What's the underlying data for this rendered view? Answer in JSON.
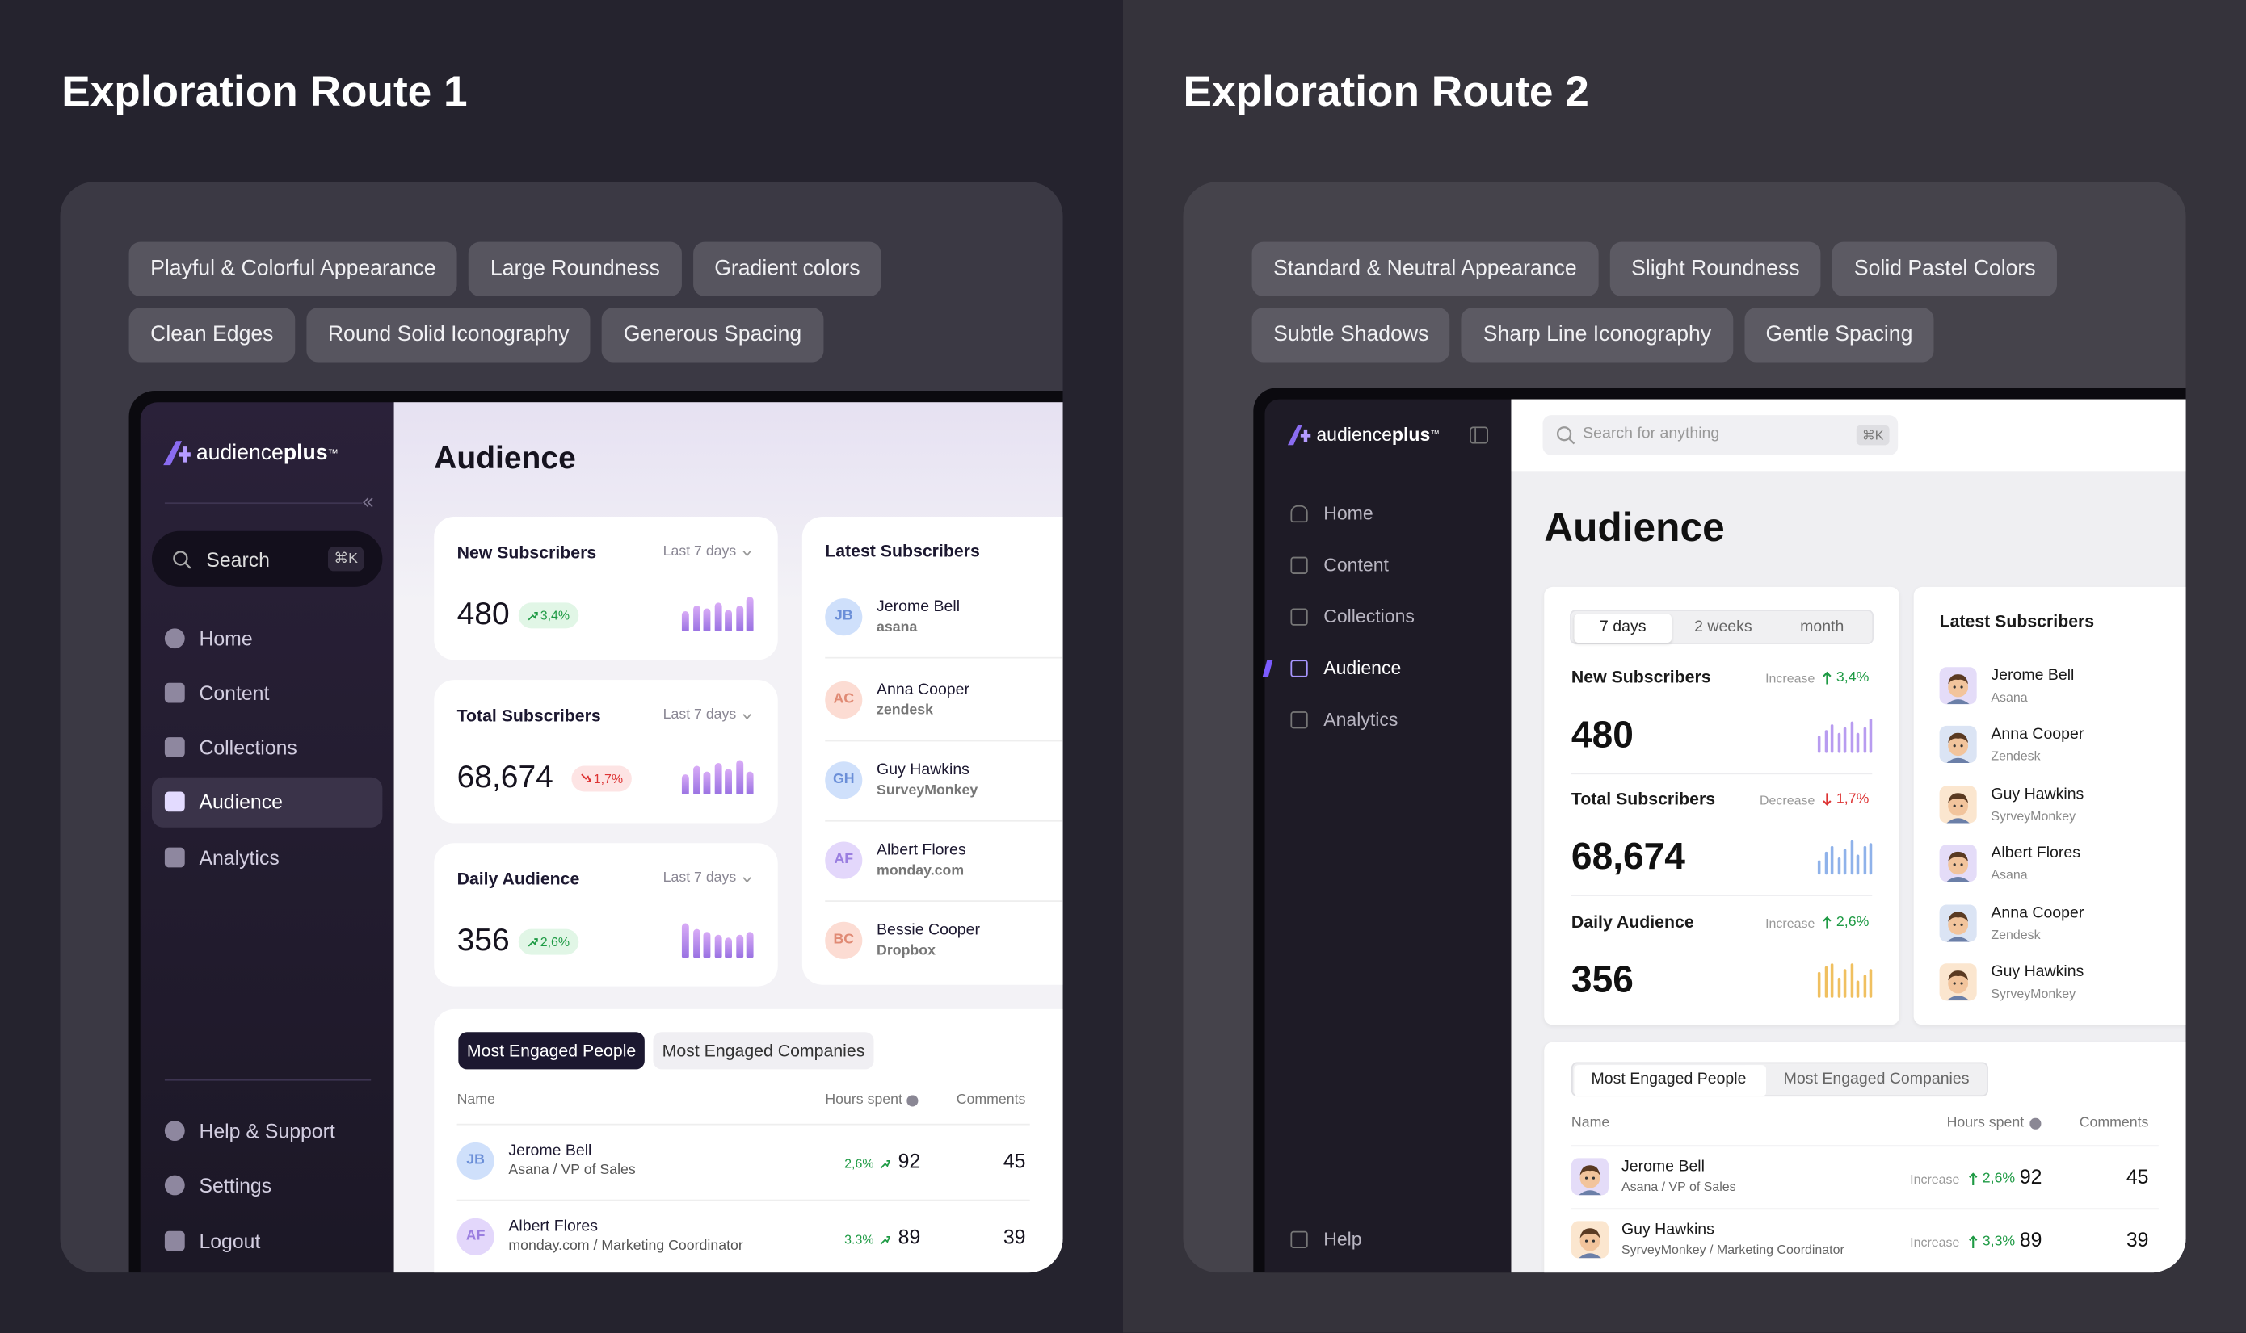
{
  "route1": {
    "title": "Exploration Route 1",
    "tags": [
      [
        "Playful & Colorful Appearance",
        "Large Roundness",
        "Gradient colors"
      ],
      [
        "Clean Edges",
        "Round Solid Iconography",
        "Generous Spacing"
      ]
    ],
    "app": {
      "brand": {
        "name": "audience",
        "accent": "plus",
        "mark": "™"
      },
      "search": "Search",
      "shortcut": "⌘K",
      "nav": [
        "Home",
        "Content",
        "Collections",
        "Audience",
        "Analytics"
      ],
      "active_nav": 3,
      "footer_nav": [
        "Help & Support",
        "Settings",
        "Logout"
      ],
      "page_title": "Audience",
      "stats": [
        {
          "label": "New Subscribers",
          "period": "Last 7 days",
          "value": "480",
          "change": "3,4%",
          "trend": "up"
        },
        {
          "label": "Total Subscribers",
          "period": "Last 7 days",
          "value": "68,674",
          "change": "1,7%",
          "trend": "down"
        },
        {
          "label": "Daily Audience",
          "period": "Last 7 days",
          "value": "356",
          "change": "2,6%",
          "trend": "up"
        }
      ],
      "latest": {
        "title": "Latest Subscribers",
        "people": [
          {
            "initials": "JB",
            "name": "Jerome Bell",
            "company": "asana"
          },
          {
            "initials": "AC",
            "name": "Anna Cooper",
            "company": "zendesk"
          },
          {
            "initials": "GH",
            "name": "Guy Hawkins",
            "company": "SurveyMonkey"
          },
          {
            "initials": "AF",
            "name": "Albert Flores",
            "company": "monday.com"
          },
          {
            "initials": "BC",
            "name": "Bessie Cooper",
            "company": "Dropbox"
          }
        ]
      },
      "table": {
        "tabs": [
          "Most Engaged People",
          "Most Engaged Companies"
        ],
        "columns": [
          "Name",
          "Hours spent",
          "Comments"
        ],
        "rows": [
          {
            "initials": "JB",
            "name": "Jerome Bell",
            "subtitle": "Asana / VP of Sales",
            "change": "2,6%",
            "hours": "92",
            "comments": "45"
          },
          {
            "initials": "AF",
            "name": "Albert Flores",
            "subtitle": "monday.com / Marketing Coordinator",
            "change": "3.3%",
            "hours": "89",
            "comments": "39"
          }
        ]
      }
    }
  },
  "route2": {
    "title": "Exploration Route 2",
    "tags": [
      [
        "Standard & Neutral Appearance",
        "Slight Roundness",
        "Solid Pastel Colors"
      ],
      [
        "Subtle Shadows",
        "Sharp Line Iconography",
        "Gentle Spacing"
      ]
    ],
    "app": {
      "brand": {
        "name": "audience",
        "accent": "plus",
        "mark": "™"
      },
      "search": "Search for anything",
      "shortcut": "⌘K",
      "nav": [
        "Home",
        "Content",
        "Collections",
        "Audience",
        "Analytics"
      ],
      "active_nav": 3,
      "footer_nav": [
        "Help"
      ],
      "page_title": "Audience",
      "segments": [
        "7 days",
        "2 weeks",
        "month"
      ],
      "stats": [
        {
          "label": "New Subscribers",
          "trend_label": "Increase",
          "change": "3,4%",
          "value": "480",
          "trend": "up"
        },
        {
          "label": "Total Subscribers",
          "trend_label": "Decrease",
          "change": "1,7%",
          "value": "68,674",
          "trend": "down"
        },
        {
          "label": "Daily Audience",
          "trend_label": "Increase",
          "change": "2,6%",
          "value": "356",
          "trend": "up"
        }
      ],
      "latest": {
        "title": "Latest Subscribers",
        "people": [
          {
            "name": "Jerome Bell",
            "company": "Asana"
          },
          {
            "name": "Anna Cooper",
            "company": "Zendesk"
          },
          {
            "name": "Guy Hawkins",
            "company": "SyrveyMonkey"
          },
          {
            "name": "Albert Flores",
            "company": "Asana"
          },
          {
            "name": "Anna Cooper",
            "company": "Zendesk"
          },
          {
            "name": "Guy Hawkins",
            "company": "SyrveyMonkey"
          }
        ]
      },
      "table": {
        "tabs": [
          "Most Engaged People",
          "Most Engaged Companies"
        ],
        "columns": [
          "Name",
          "Hours spent",
          "Comments"
        ],
        "rows": [
          {
            "name": "Jerome Bell",
            "subtitle": "Asana / VP of Sales",
            "trend_label": "Increase",
            "change": "2,6%",
            "hours": "92",
            "comments": "45"
          },
          {
            "name": "Guy Hawkins",
            "subtitle": "SyrveyMonkey / Marketing Coordinator",
            "trend_label": "Increase",
            "change": "3,3%",
            "hours": "89",
            "comments": "39"
          }
        ]
      }
    }
  }
}
